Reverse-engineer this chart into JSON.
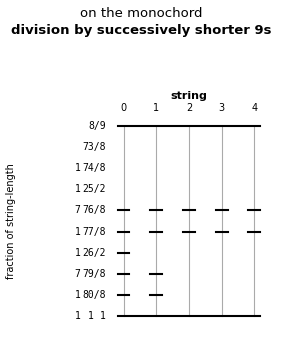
{
  "title_line1": "on the monochord",
  "title_line2": "division by successively shorter 9s",
  "xlabel": "string",
  "ylabel": "fraction of string-length",
  "string_positions": [
    0,
    1,
    2,
    3,
    4
  ],
  "fraction_order": [
    "8/9",
    "73/8",
    "74/8",
    "25/2",
    "76/8",
    "77/8",
    "26/2",
    "79/8",
    "80/8",
    "1"
  ],
  "string_color": "#aaaaaa",
  "tick_color": "#000000",
  "string_ticks": {
    "0": [
      "8/9",
      "76/8",
      "77/8",
      "26/2",
      "79/8",
      "80/8",
      "1"
    ],
    "1": [
      "8/9",
      "76/8",
      "77/8",
      "79/8",
      "80/8",
      "1"
    ],
    "2": [
      "8/9",
      "76/8",
      "77/8",
      "1"
    ],
    "3": [
      "8/9",
      "76/8",
      "77/8",
      "1"
    ],
    "4": [
      "8/9",
      "76/8",
      "77/8",
      "1"
    ]
  },
  "tick_halfwidth": 0.18,
  "background_color": "#ffffff",
  "title_fontsize": 9.5,
  "label_fontsize": 7,
  "semitone_labels_col1": [
    "",
    "",
    "1",
    "1",
    "7",
    "1",
    "1",
    "7",
    "1",
    "1"
  ],
  "semitone_labels_col2": [
    "",
    "",
    "",
    "",
    "",
    "",
    "",
    "",
    "",
    "1"
  ]
}
